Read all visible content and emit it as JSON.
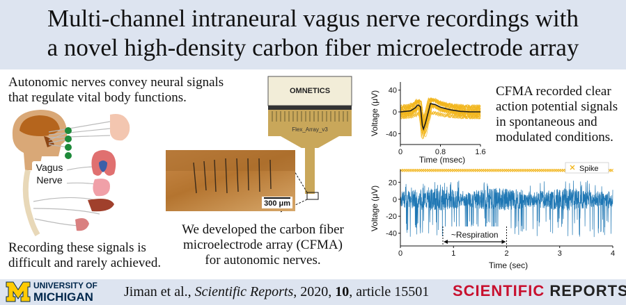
{
  "title": {
    "line1": "Multi-channel intraneural vagus nerve recordings with",
    "line2": "a novel high-density carbon fiber microelectrode array"
  },
  "text": {
    "intro_line1": "Autonomic nerves convey neural signals",
    "intro_line2": "that regulate vital body functions.",
    "hard_line1": "Recording these signals is",
    "hard_line2": "difficult and rarely achieved.",
    "dev_line1": "We developed the carbon fiber",
    "dev_line2": "microelectrode array (CFMA)",
    "dev_line3": "for autonomic nerves.",
    "result_line1": "CFMA recorded clear",
    "result_line2": "action potential signals",
    "result_line3": "in spontaneous and",
    "result_line4": "modulated conditions."
  },
  "anatomy": {
    "vagus_label_line1": "Vagus",
    "vagus_label_line2": "Nerve"
  },
  "device": {
    "connector_label": "OMNETICS",
    "flex_label": "Flex_Array_v3",
    "scale_bar_label": "300 μm"
  },
  "colors": {
    "waveform": "#f2b51c",
    "mean_trace": "#1a1a1a",
    "signal": "#1f77b4",
    "spike_marker": "#f2b51c",
    "band": "#dde4f0",
    "michigan_blue": "#00274c",
    "michigan_maize": "#ffcb05",
    "sci_red": "#c8102e"
  },
  "chart_data": [
    {
      "type": "line",
      "title": "",
      "xlabel": "Time (msec)",
      "ylabel": "Voltage (μV)",
      "xlim": [
        0,
        1.6
      ],
      "ylim": [
        -60,
        55
      ],
      "xticks": [
        "0",
        "0.8",
        "1.6"
      ],
      "yticks": [
        "40",
        "0",
        "-40"
      ],
      "series": [
        {
          "name": "overlaid spike waveforms",
          "color": "#f2b51c",
          "x": [
            0,
            0.2,
            0.3,
            0.35,
            0.4,
            0.45,
            0.5,
            0.6,
            0.7,
            0.8,
            1.0,
            1.2,
            1.4,
            1.6
          ],
          "y": [
            0,
            2,
            8,
            14,
            10,
            -36,
            -22,
            16,
            14,
            9,
            4,
            1,
            0,
            0
          ]
        },
        {
          "name": "mean waveform",
          "color": "#1a1a1a",
          "x": [
            0,
            0.2,
            0.3,
            0.35,
            0.4,
            0.45,
            0.5,
            0.6,
            0.7,
            0.8,
            1.0,
            1.2,
            1.4,
            1.6
          ],
          "y": [
            0,
            2,
            8,
            14,
            10,
            -36,
            -22,
            16,
            14,
            9,
            4,
            1,
            0,
            0
          ]
        }
      ]
    },
    {
      "type": "line",
      "title": "",
      "xlabel": "Time (sec)",
      "ylabel": "Voltage (μV)",
      "xlim": [
        0,
        4
      ],
      "ylim": [
        -55,
        35
      ],
      "xticks": [
        "0",
        "1",
        "2",
        "3",
        "4"
      ],
      "yticks": [
        "20",
        "0",
        "-20",
        "-40"
      ],
      "legend": "top-right",
      "legend_entries": [
        "Spike"
      ],
      "annotation": {
        "text": "~Respiration",
        "x_start": 0.8,
        "x_end": 2.0
      },
      "series": [
        {
          "name": "recorded signal",
          "color": "#1f77b4",
          "envelope": {
            "upper": 22,
            "lower": -45
          }
        },
        {
          "name": "Spike",
          "color": "#f2b51c",
          "marker": "x",
          "y": 34
        }
      ]
    }
  ],
  "footer": {
    "university_line1": "UNIVERSITY OF",
    "university_line2": "MICHIGAN",
    "citation_authors": "Jiman et al., ",
    "citation_journal": "Scientific Reports",
    "citation_year": ", 2020, ",
    "citation_volume": "10",
    "citation_article": ", article 15501",
    "journal_logo_part1": "SCIENTIFIC",
    "journal_logo_part2": " REPORTS"
  }
}
